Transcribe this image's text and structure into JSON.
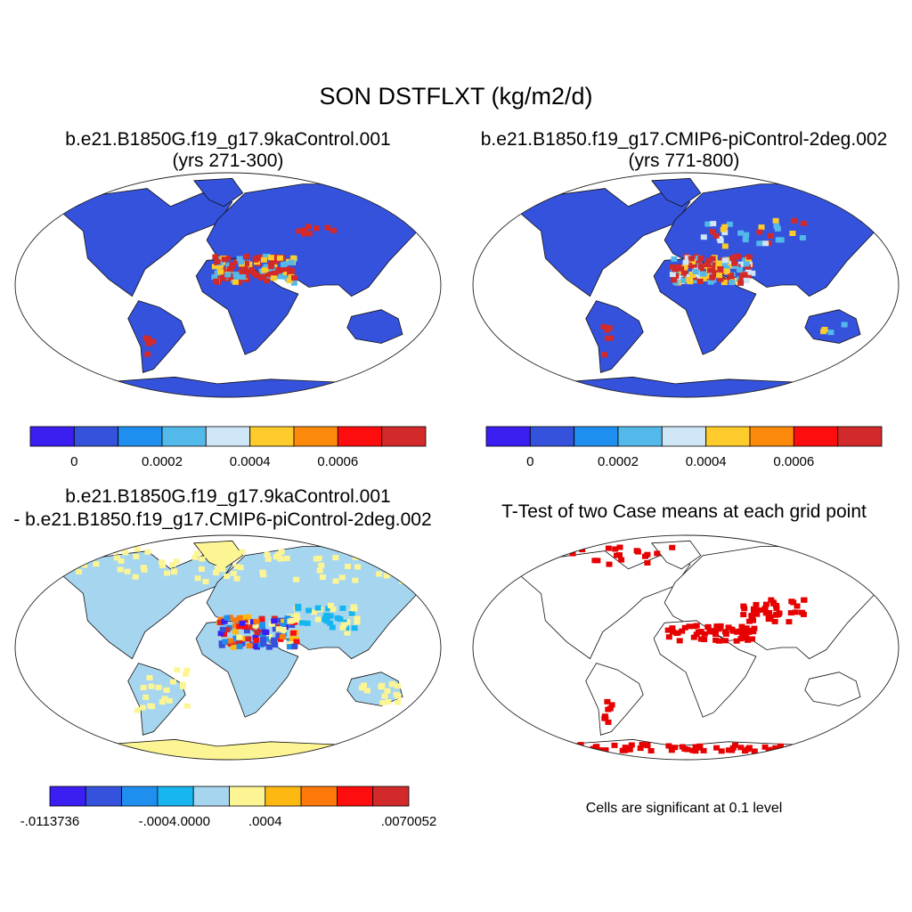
{
  "figure": {
    "title": "SON DSTFLXT (kg/m2/d)"
  },
  "panels": [
    {
      "id": "case1",
      "title_line1": "b.e21.B1850G.f19_g17.9kaControl.001",
      "title_line2": "(yrs 271-300)",
      "colorbar": {
        "colors": [
          "#3a1ef2",
          "#3552dd",
          "#1f8fef",
          "#52b9ea",
          "#cfe6f6",
          "#fdcb2b",
          "#fd8a0a",
          "#fd0d0d",
          "#d22a2a"
        ],
        "labels": [
          "0",
          "0.0002",
          "0.0004",
          "0.0006"
        ]
      }
    },
    {
      "id": "case2",
      "title_line1": "b.e21.B1850.f19_g17.CMIP6-piControl-2deg.002",
      "title_line2": "(yrs 771-800)",
      "colorbar": {
        "colors": [
          "#3a1ef2",
          "#3552dd",
          "#1f8fef",
          "#52b9ea",
          "#cfe6f6",
          "#fdcb2b",
          "#fd8a0a",
          "#fd0d0d",
          "#d22a2a"
        ],
        "labels": [
          "0",
          "0.0002",
          "0.0004",
          "0.0006"
        ]
      }
    },
    {
      "id": "difference",
      "title_line1": "b.e21.B1850G.f19_g17.9kaControl.001",
      "title_line2": "- b.e21.B1850.f19_g17.CMIP6-piControl-2deg.002",
      "colorbar": {
        "colors": [
          "#3a1ef2",
          "#3552dd",
          "#1f8fef",
          "#17b6f0",
          "#a6d6ef",
          "#fdf594",
          "#fdb812",
          "#fd7a0a",
          "#fd0d0d",
          "#d22a2a"
        ],
        "labels": [
          "-.0113736",
          "-.0004",
          ".0000",
          ".0004",
          ".0070052"
        ]
      }
    },
    {
      "id": "ttest",
      "title_line1": "T-Test of two Case means at each grid point",
      "note": "Cells are significant at 0.1 level",
      "significant_color": "#e60000"
    }
  ],
  "colors": {
    "land_low": "#3552dd",
    "diff_land": "#a6d6ef",
    "diff_desert": "#fdf594",
    "high": "#d22a2a"
  }
}
